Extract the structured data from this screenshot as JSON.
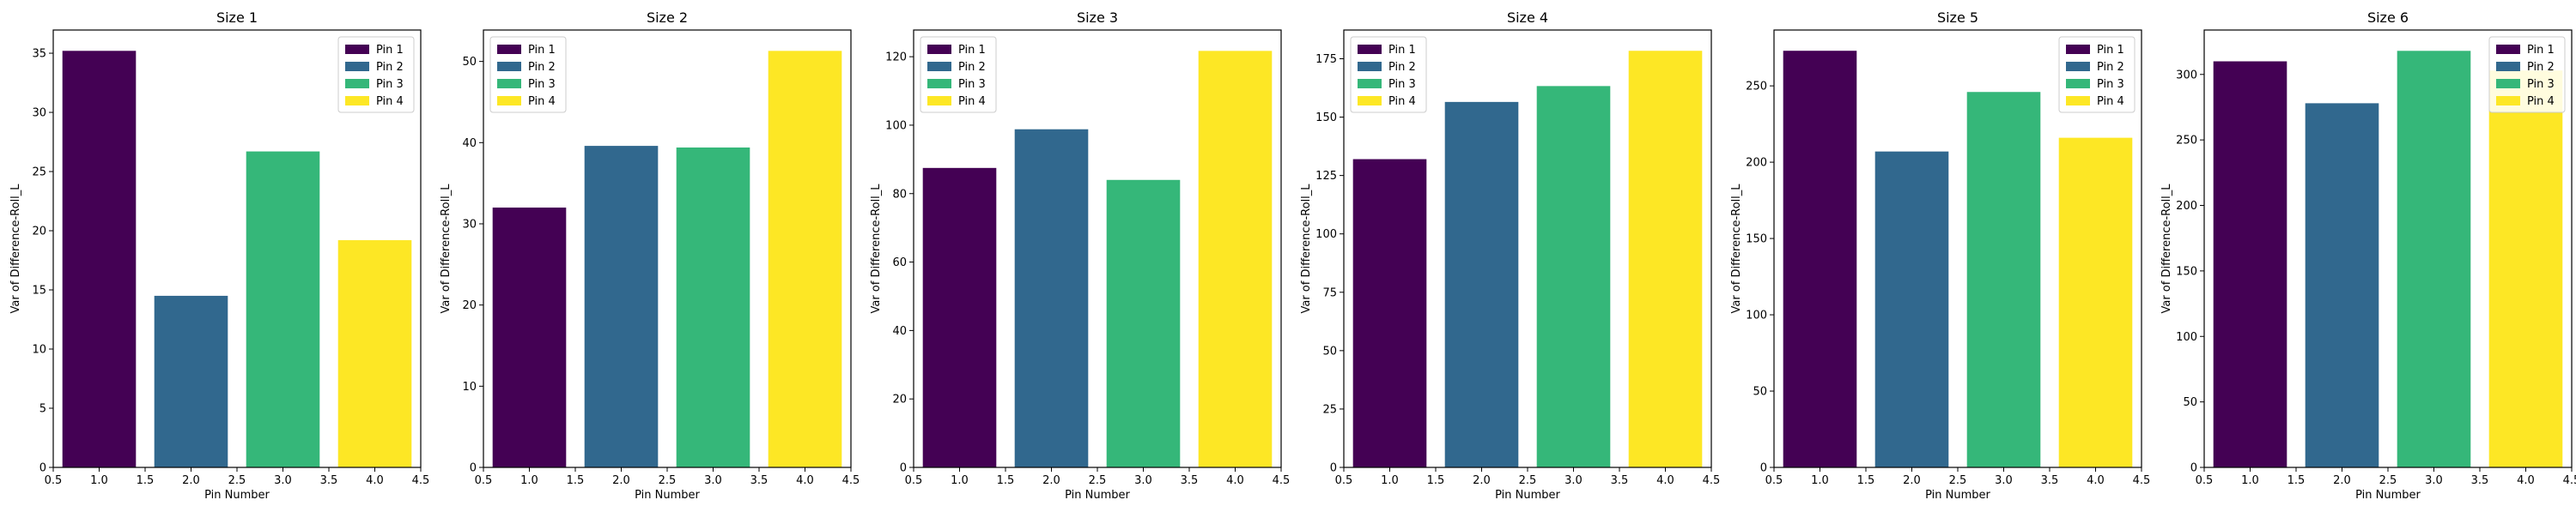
{
  "figure": {
    "colors": [
      "#440154",
      "#31688e",
      "#35b779",
      "#fde725"
    ],
    "axis_color": "#000000"
  },
  "chart_data": [
    {
      "type": "bar",
      "title": "Size 1",
      "xlabel": "Pin Number",
      "ylabel": "Var of Difference-Roll_L",
      "x": [
        1,
        2,
        3,
        4
      ],
      "values": [
        35.2,
        14.5,
        26.7,
        19.2
      ],
      "legend": [
        "Pin 1",
        "Pin 2",
        "Pin 3",
        "Pin 4"
      ],
      "legend_loc": "upper right",
      "xlim": [
        0.5,
        4.5
      ],
      "ylim": [
        0,
        36.96
      ],
      "xticks": [
        0.5,
        1.0,
        1.5,
        2.0,
        2.5,
        3.0,
        3.5,
        4.0,
        4.5
      ],
      "xtick_labels": [
        "0.5",
        "1.0",
        "1.5",
        "2.0",
        "2.5",
        "3.0",
        "3.5",
        "4.0",
        "4.5"
      ],
      "yticks": [
        0,
        5,
        10,
        15,
        20,
        25,
        30,
        35
      ],
      "ytick_labels": [
        "0",
        "5",
        "10",
        "15",
        "20",
        "25",
        "30",
        "35"
      ],
      "grid": false
    },
    {
      "type": "bar",
      "title": "Size 2",
      "xlabel": "Pin Number",
      "ylabel": "Var of Difference-Roll_L",
      "x": [
        1,
        2,
        3,
        4
      ],
      "values": [
        32.0,
        39.6,
        39.4,
        51.3
      ],
      "legend": [
        "Pin 1",
        "Pin 2",
        "Pin 3",
        "Pin 4"
      ],
      "legend_loc": "upper left",
      "xlim": [
        0.5,
        4.5
      ],
      "ylim": [
        0,
        53.87
      ],
      "xticks": [
        0.5,
        1.0,
        1.5,
        2.0,
        2.5,
        3.0,
        3.5,
        4.0,
        4.5
      ],
      "xtick_labels": [
        "0.5",
        "1.0",
        "1.5",
        "2.0",
        "2.5",
        "3.0",
        "3.5",
        "4.0",
        "4.5"
      ],
      "yticks": [
        0,
        10,
        20,
        30,
        40,
        50
      ],
      "ytick_labels": [
        "0",
        "10",
        "20",
        "30",
        "40",
        "50"
      ],
      "grid": false
    },
    {
      "type": "bar",
      "title": "Size 3",
      "xlabel": "Pin Number",
      "ylabel": "Var of Difference-Roll_L",
      "x": [
        1,
        2,
        3,
        4
      ],
      "values": [
        87.5,
        98.8,
        84.0,
        121.7
      ],
      "legend": [
        "Pin 1",
        "Pin 2",
        "Pin 3",
        "Pin 4"
      ],
      "legend_loc": "upper left",
      "xlim": [
        0.5,
        4.5
      ],
      "ylim": [
        0,
        127.8
      ],
      "xticks": [
        0.5,
        1.0,
        1.5,
        2.0,
        2.5,
        3.0,
        3.5,
        4.0,
        4.5
      ],
      "xtick_labels": [
        "0.5",
        "1.0",
        "1.5",
        "2.0",
        "2.5",
        "3.0",
        "3.5",
        "4.0",
        "4.5"
      ],
      "yticks": [
        0,
        20,
        40,
        60,
        80,
        100,
        120
      ],
      "ytick_labels": [
        "0",
        "20",
        "40",
        "60",
        "80",
        "100",
        "120"
      ],
      "grid": false
    },
    {
      "type": "bar",
      "title": "Size 4",
      "xlabel": "Pin Number",
      "ylabel": "Var of Difference-Roll_L",
      "x": [
        1,
        2,
        3,
        4
      ],
      "values": [
        132.0,
        156.5,
        163.3,
        178.4
      ],
      "legend": [
        "Pin 1",
        "Pin 2",
        "Pin 3",
        "Pin 4"
      ],
      "legend_loc": "upper left",
      "xlim": [
        0.5,
        4.5
      ],
      "ylim": [
        0,
        187.3
      ],
      "xticks": [
        0.5,
        1.0,
        1.5,
        2.0,
        2.5,
        3.0,
        3.5,
        4.0,
        4.5
      ],
      "xtick_labels": [
        "0.5",
        "1.0",
        "1.5",
        "2.0",
        "2.5",
        "3.0",
        "3.5",
        "4.0",
        "4.5"
      ],
      "yticks": [
        0,
        25,
        50,
        75,
        100,
        125,
        150,
        175
      ],
      "ytick_labels": [
        "0",
        "25",
        "50",
        "75",
        "100",
        "125",
        "150",
        "175"
      ],
      "grid": false
    },
    {
      "type": "bar",
      "title": "Size 5",
      "xlabel": "Pin Number",
      "ylabel": "Var of Difference-Roll_L",
      "x": [
        1,
        2,
        3,
        4
      ],
      "values": [
        273.0,
        207.0,
        246.0,
        216.0
      ],
      "legend": [
        "Pin 1",
        "Pin 2",
        "Pin 3",
        "Pin 4"
      ],
      "legend_loc": "upper right",
      "xlim": [
        0.5,
        4.5
      ],
      "ylim": [
        0,
        286.6
      ],
      "xticks": [
        0.5,
        1.0,
        1.5,
        2.0,
        2.5,
        3.0,
        3.5,
        4.0,
        4.5
      ],
      "xtick_labels": [
        "0.5",
        "1.0",
        "1.5",
        "2.0",
        "2.5",
        "3.0",
        "3.5",
        "4.0",
        "4.5"
      ],
      "yticks": [
        0,
        50,
        100,
        150,
        200,
        250
      ],
      "ytick_labels": [
        "0",
        "50",
        "100",
        "150",
        "200",
        "250"
      ],
      "grid": false
    },
    {
      "type": "bar",
      "title": "Size 6",
      "xlabel": "Pin Number",
      "ylabel": "Var of Difference-Roll_L",
      "x": [
        1,
        2,
        3,
        4
      ],
      "values": [
        310.0,
        278.0,
        318.0,
        303.0
      ],
      "legend": [
        "Pin 1",
        "Pin 2",
        "Pin 3",
        "Pin 4"
      ],
      "legend_loc": "upper right",
      "xlim": [
        0.5,
        4.5
      ],
      "ylim": [
        0,
        333.9
      ],
      "xticks": [
        0.5,
        1.0,
        1.5,
        2.0,
        2.5,
        3.0,
        3.5,
        4.0,
        4.5
      ],
      "xtick_labels": [
        "0.5",
        "1.0",
        "1.5",
        "2.0",
        "2.5",
        "3.0",
        "3.5",
        "4.0",
        "4.5"
      ],
      "yticks": [
        0,
        50,
        100,
        150,
        200,
        250,
        300
      ],
      "ytick_labels": [
        "0",
        "50",
        "100",
        "150",
        "200",
        "250",
        "300"
      ],
      "grid": false
    }
  ]
}
